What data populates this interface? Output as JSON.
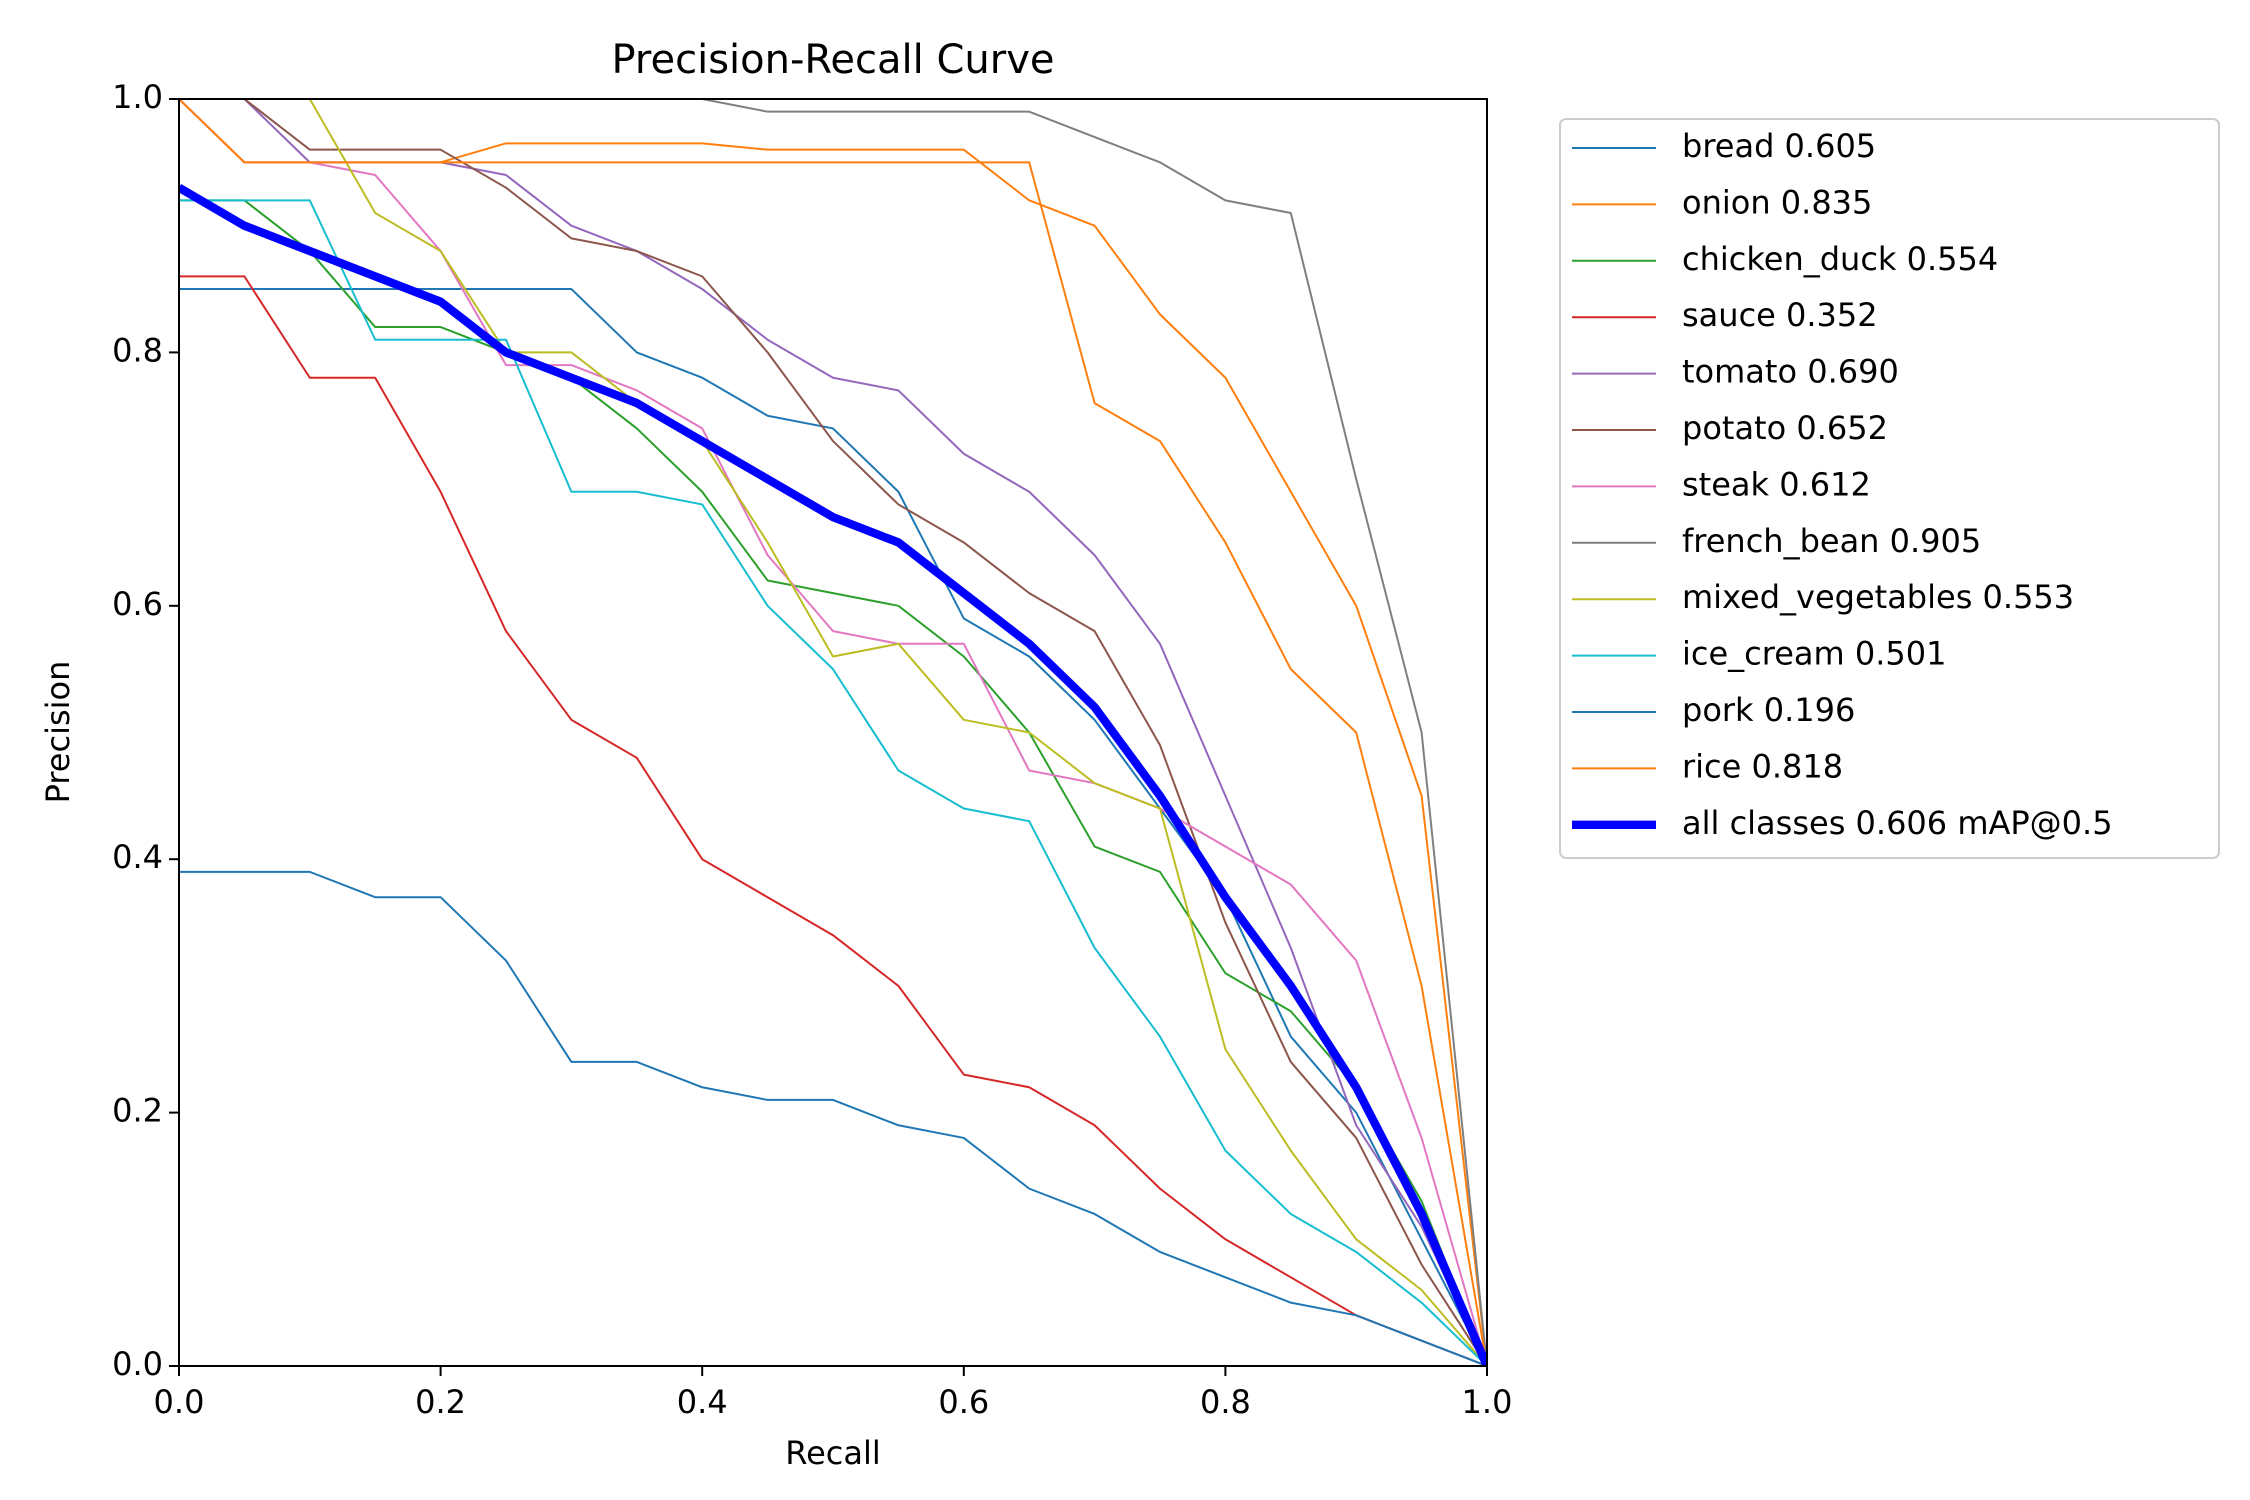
{
  "chart_data": {
    "type": "line",
    "title": "Precision-Recall Curve",
    "x_label": "Recall",
    "y_label": "Precision",
    "x": [
      0,
      0.05,
      0.1,
      0.15,
      0.2,
      0.25,
      0.3,
      0.35,
      0.4,
      0.45,
      0.5,
      0.55,
      0.6,
      0.65,
      0.7,
      0.75,
      0.8,
      0.85,
      0.9,
      0.95,
      1
    ],
    "xlim": [
      0,
      1
    ],
    "ylim": [
      0,
      1
    ],
    "xticks": [
      {
        "value": 0,
        "label": "0.0"
      },
      0.2,
      0.4,
      0.6,
      0.8,
      {
        "value": 1,
        "label": "1.0"
      }
    ],
    "yticks": [
      {
        "value": 0,
        "label": "0.0"
      },
      0.2,
      0.4,
      0.6,
      0.8,
      {
        "value": 1,
        "label": "1.0"
      }
    ],
    "legend": "outside-right",
    "series": [
      {
        "name": "bread 0.605",
        "color": "#1f77b4",
        "values": [
          0.85,
          0.85,
          0.85,
          0.85,
          0.85,
          0.85,
          0.85,
          0.8,
          0.78,
          0.75,
          0.74,
          0.69,
          0.59,
          0.56,
          0.51,
          0.44,
          0.37,
          0.26,
          0.2,
          0.1,
          0
        ]
      },
      {
        "name": "onion 0.835",
        "color": "#ff7f0e",
        "values": [
          1,
          0.95,
          0.95,
          0.95,
          0.95,
          0.965,
          0.965,
          0.965,
          0.965,
          0.96,
          0.96,
          0.96,
          0.96,
          0.92,
          0.9,
          0.83,
          0.78,
          0.69,
          0.6,
          0.45,
          0
        ]
      },
      {
        "name": "chicken_duck 0.554",
        "color": "#2ca02c",
        "values": [
          0.92,
          0.92,
          0.88,
          0.82,
          0.82,
          0.8,
          0.78,
          0.74,
          0.69,
          0.62,
          0.61,
          0.6,
          0.56,
          0.5,
          0.41,
          0.39,
          0.31,
          0.28,
          0.22,
          0.13,
          0
        ]
      },
      {
        "name": "sauce 0.352",
        "color": "#d62728",
        "values": [
          0.86,
          0.86,
          0.78,
          0.78,
          0.69,
          0.58,
          0.51,
          0.48,
          0.4,
          0.37,
          0.34,
          0.3,
          0.23,
          0.22,
          0.19,
          0.14,
          0.1,
          0.07,
          0.04,
          0.02,
          0
        ]
      },
      {
        "name": "tomato 0.690",
        "color": "#9467bd",
        "values": [
          1,
          1,
          0.95,
          0.95,
          0.95,
          0.94,
          0.9,
          0.88,
          0.85,
          0.81,
          0.78,
          0.77,
          0.72,
          0.69,
          0.64,
          0.57,
          0.45,
          0.33,
          0.19,
          0.11,
          0
        ]
      },
      {
        "name": "potato 0.652",
        "color": "#8c564b",
        "values": [
          1,
          1,
          0.96,
          0.96,
          0.96,
          0.93,
          0.89,
          0.88,
          0.86,
          0.8,
          0.73,
          0.68,
          0.65,
          0.61,
          0.58,
          0.49,
          0.35,
          0.24,
          0.18,
          0.08,
          0
        ]
      },
      {
        "name": "steak 0.612",
        "color": "#e377c2",
        "values": [
          1,
          0.95,
          0.95,
          0.94,
          0.88,
          0.79,
          0.79,
          0.77,
          0.74,
          0.64,
          0.58,
          0.57,
          0.57,
          0.47,
          0.46,
          0.44,
          0.41,
          0.38,
          0.32,
          0.18,
          0
        ]
      },
      {
        "name": "french_bean 0.905",
        "color": "#7f7f7f",
        "values": [
          1,
          1,
          1,
          1,
          1,
          1,
          1,
          1,
          1,
          0.99,
          0.99,
          0.99,
          0.99,
          0.99,
          0.97,
          0.95,
          0.92,
          0.91,
          0.7,
          0.5,
          0
        ]
      },
      {
        "name": "mixed_vegetables 0.553",
        "color": "#bcbd22",
        "values": [
          1,
          1,
          1,
          0.91,
          0.88,
          0.8,
          0.8,
          0.76,
          0.73,
          0.65,
          0.56,
          0.57,
          0.51,
          0.5,
          0.46,
          0.44,
          0.25,
          0.17,
          0.1,
          0.06,
          0
        ]
      },
      {
        "name": "ice_cream 0.501",
        "color": "#17becf",
        "values": [
          0.92,
          0.92,
          0.92,
          0.81,
          0.81,
          0.81,
          0.69,
          0.69,
          0.68,
          0.6,
          0.55,
          0.47,
          0.44,
          0.43,
          0.33,
          0.26,
          0.17,
          0.12,
          0.09,
          0.05,
          0
        ]
      },
      {
        "name": "pork 0.196",
        "color": "#1f77b4",
        "values": [
          0.39,
          0.39,
          0.39,
          0.37,
          0.37,
          0.32,
          0.24,
          0.24,
          0.22,
          0.21,
          0.21,
          0.19,
          0.18,
          0.14,
          0.12,
          0.09,
          0.07,
          0.05,
          0.04,
          0.02,
          0
        ]
      },
      {
        "name": "rice 0.818",
        "color": "#ff7f0e",
        "values": [
          1,
          0.95,
          0.95,
          0.95,
          0.95,
          0.95,
          0.95,
          0.95,
          0.95,
          0.95,
          0.95,
          0.95,
          0.95,
          0.95,
          0.76,
          0.73,
          0.65,
          0.55,
          0.5,
          0.3,
          0
        ]
      },
      {
        "name": "all classes 0.606 mAP@0.5",
        "color": "#0000ff",
        "linewidth": 3,
        "values": [
          0.93,
          0.9,
          0.88,
          0.86,
          0.84,
          0.8,
          0.78,
          0.76,
          0.73,
          0.7,
          0.67,
          0.65,
          0.61,
          0.57,
          0.52,
          0.45,
          0.37,
          0.3,
          0.22,
          0.12,
          0
        ]
      }
    ]
  }
}
